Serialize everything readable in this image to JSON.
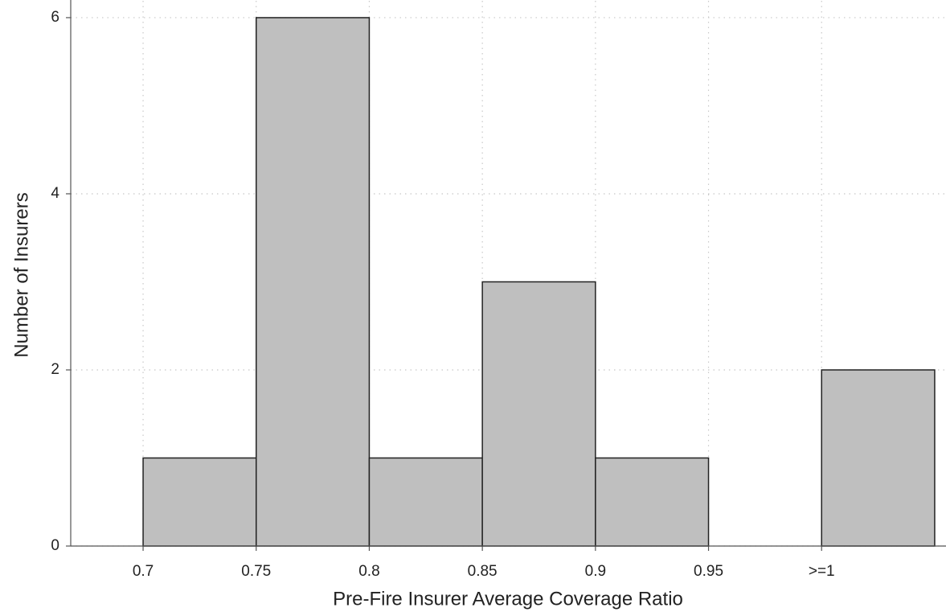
{
  "chart_data": {
    "type": "histogram",
    "x_label": "Pre-Fire Insurer Average Coverage Ratio",
    "y_label": "Number of Insurers",
    "bins": [
      0.7,
      0.75,
      0.8,
      0.85,
      0.9,
      0.95,
      1.0,
      1.05
    ],
    "counts": [
      1,
      6,
      1,
      3,
      1,
      0,
      2
    ],
    "color": "#bfbfbf",
    "xlim": [
      0.668,
      1.055
    ],
    "ylim": [
      0,
      6.1
    ],
    "xticks": [
      0.7,
      0.75,
      0.8,
      0.85,
      0.9,
      0.95,
      {
        "value": 1,
        "label": ">=1"
      }
    ],
    "yticks": [
      0,
      2,
      4,
      6
    ],
    "grid": true
  }
}
